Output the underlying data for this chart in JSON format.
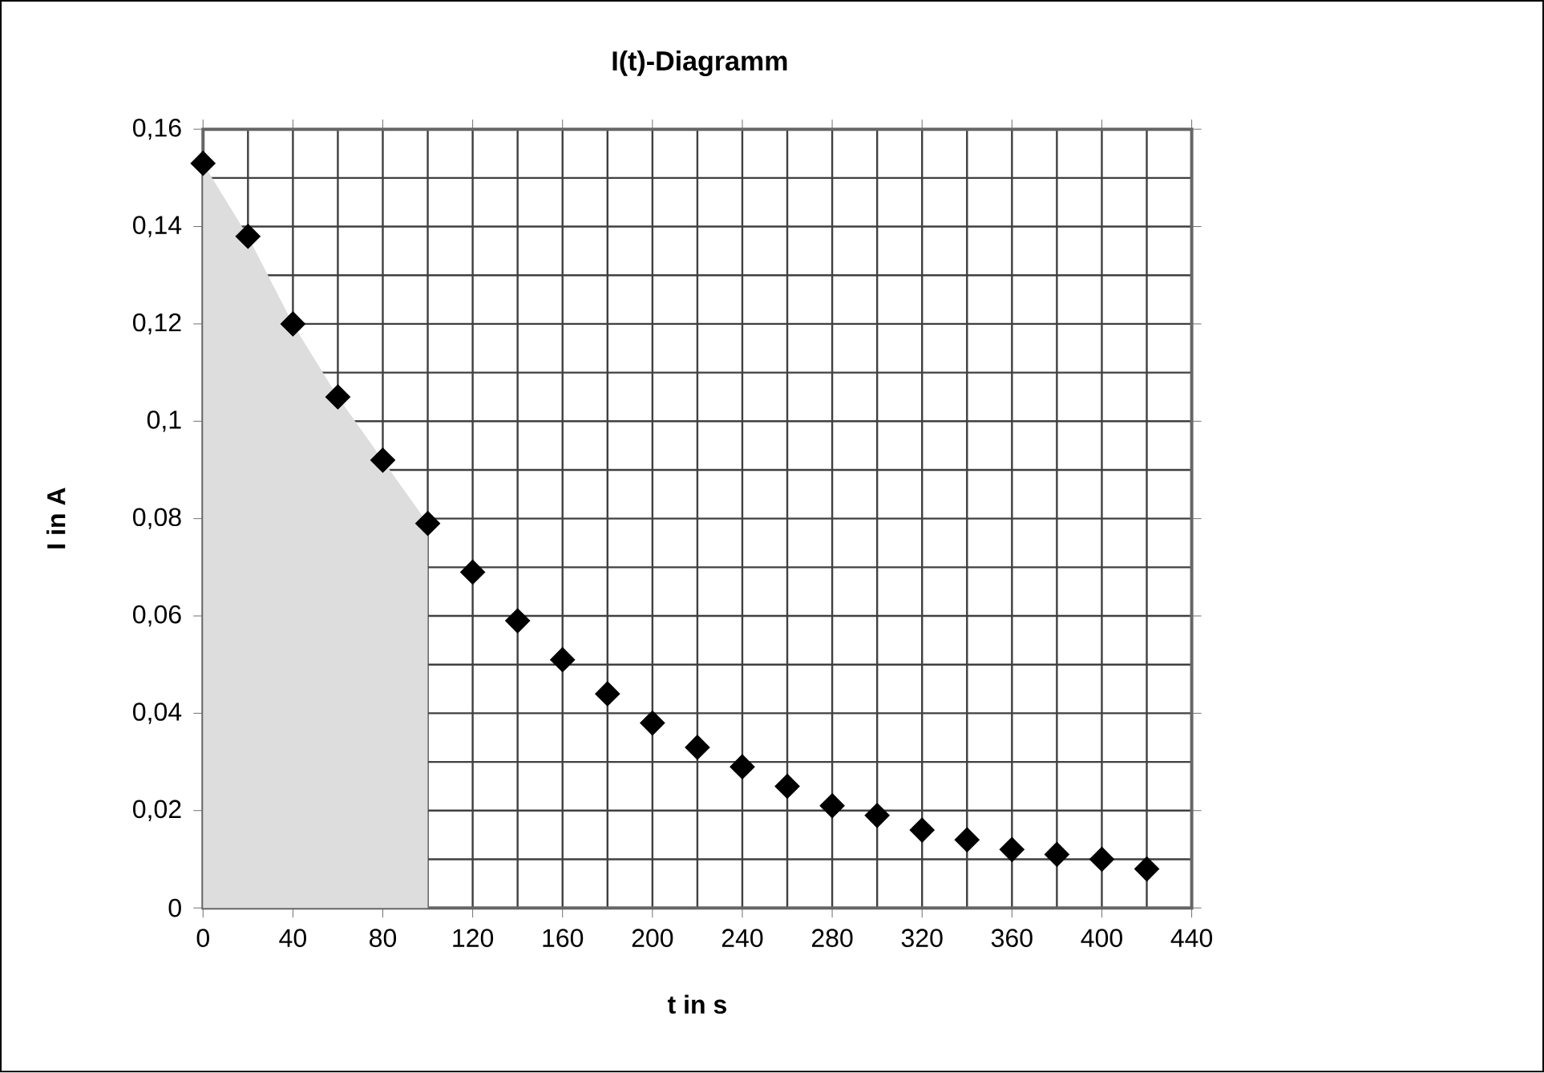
{
  "chart_data": {
    "type": "scatter",
    "title": "I(t)-Diagramm",
    "xlabel": "t in s",
    "ylabel": "I in A",
    "xlim": [
      0,
      440
    ],
    "xticks": [
      0,
      40,
      80,
      120,
      160,
      200,
      240,
      280,
      320,
      360,
      400,
      440
    ],
    "ylim": [
      0,
      0.16
    ],
    "yticks": [
      0,
      {
        "value": 0.02,
        "label": "0,02"
      },
      {
        "value": 0.04,
        "label": "0,04"
      },
      {
        "value": 0.06,
        "label": "0,06"
      },
      {
        "value": 0.08,
        "label": "0,08"
      },
      {
        "value": 0.1,
        "label": "0,1"
      },
      {
        "value": 0.12,
        "label": "0,12"
      },
      {
        "value": 0.14,
        "label": "0,14"
      },
      {
        "value": 0.16,
        "label": "0,16"
      }
    ],
    "grid": true,
    "series": [
      {
        "type": "area",
        "color": "#dddddd",
        "x": [
          0,
          20,
          40,
          60,
          80,
          100
        ],
        "values": [
          0.153,
          0.138,
          0.12,
          0.105,
          0.092,
          0.079
        ]
      },
      {
        "marker": "diamond",
        "color": "#000000",
        "x": [
          0,
          20,
          40,
          60,
          80,
          100,
          120,
          140,
          160,
          180,
          200,
          220,
          240,
          260,
          280,
          300,
          320,
          340,
          360,
          380,
          400,
          420
        ],
        "values": [
          0.153,
          0.138,
          0.12,
          0.105,
          0.092,
          0.079,
          0.069,
          0.059,
          0.051,
          0.044,
          0.038,
          0.033,
          0.029,
          0.025,
          0.021,
          0.019,
          0.016,
          0.014,
          0.012,
          0.011,
          0.01,
          0.008
        ]
      }
    ]
  }
}
